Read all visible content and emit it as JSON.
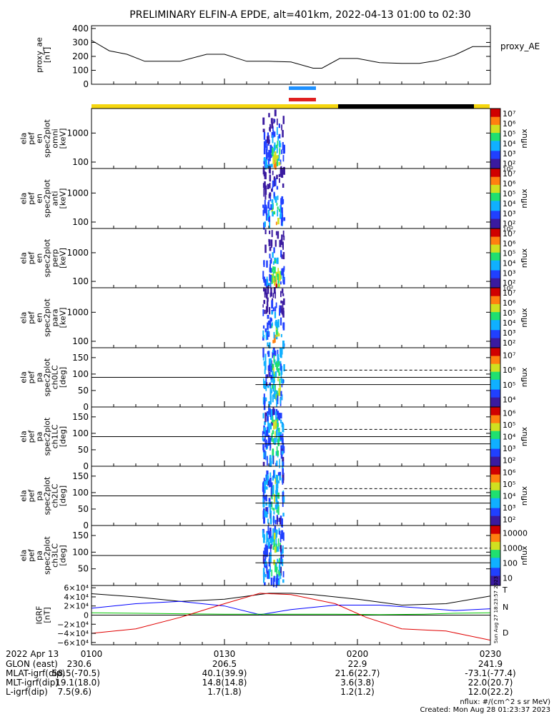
{
  "header": {
    "title": "PRELIMINARY ELFIN-A EPDE, alt=401km, 2022-04-13 01:00 to 02:30"
  },
  "colors": {
    "sunlight": "#f5d60f",
    "eclipse": "#000000",
    "sci_blue": "#1e90ff",
    "sci_red": "#e02020",
    "bx": "#000000",
    "by": "#0000ff",
    "bz": "#00c800",
    "bt": "#e00000"
  },
  "chart_data": [
    {
      "type": "line",
      "panel": "proxy_ae",
      "ylabel": "proxy_ae\n[nT]",
      "ylabel_lines": [
        "proxy_ae",
        "[nT]"
      ],
      "legend": "proxy_AE",
      "ylim": [
        0,
        420
      ],
      "yticks": [
        0,
        100,
        200,
        300,
        400
      ],
      "series": [
        {
          "name": "proxy_AE",
          "x": [
            0,
            4,
            8,
            12,
            17,
            20,
            26,
            30,
            35,
            40,
            45,
            50,
            52,
            56,
            60,
            65,
            70,
            74,
            78,
            82,
            86,
            90
          ],
          "values": [
            315,
            240,
            215,
            165,
            165,
            165,
            215,
            215,
            165,
            165,
            160,
            115,
            115,
            185,
            185,
            155,
            150,
            150,
            170,
            210,
            270,
            270
          ]
        }
      ]
    },
    {
      "type": "heatmap",
      "panel": "omni",
      "ylabel_lines": [
        "ela",
        "pef",
        "en",
        "spec2plot",
        "omni",
        "[keV]"
      ],
      "ylim": [
        60,
        7000
      ],
      "yscale": "log",
      "yticks": [
        100,
        1000
      ],
      "colorbar_label": "nflux",
      "colorbar_ticks": [
        "10²",
        "10³",
        "10⁴",
        "10⁵",
        "10⁶",
        "10⁷"
      ],
      "colorbar_extra_ticks": [
        "10²"
      ]
    },
    {
      "type": "heatmap",
      "panel": "anti",
      "ylabel_lines": [
        "ela",
        "pef",
        "en",
        "spec2plot",
        "anti",
        "[keV]"
      ],
      "ylim": [
        60,
        7000
      ],
      "yscale": "log",
      "yticks": [
        100,
        1000
      ],
      "colorbar_label": "nflux",
      "colorbar_ticks": [
        "10²",
        "10³",
        "10⁴",
        "10⁵",
        "10⁶",
        "10⁷"
      ],
      "colorbar_extra_ticks": [
        "10²"
      ]
    },
    {
      "type": "heatmap",
      "panel": "perp",
      "ylabel_lines": [
        "ela",
        "pef",
        "en",
        "spec2plot",
        "perp",
        "[keV]"
      ],
      "ylim": [
        60,
        7000
      ],
      "yscale": "log",
      "yticks": [
        100,
        1000
      ],
      "colorbar_label": "nflux",
      "colorbar_ticks": [
        "10²",
        "10³",
        "10⁴",
        "10⁵",
        "10⁶",
        "10⁷"
      ],
      "colorbar_extra_ticks": [
        "10²"
      ]
    },
    {
      "type": "heatmap",
      "panel": "para",
      "ylabel_lines": [
        "ela",
        "pef",
        "en",
        "spec2plot",
        "para",
        "[keV]"
      ],
      "ylim": [
        60,
        7000
      ],
      "yscale": "log",
      "yticks": [
        100,
        1000
      ],
      "colorbar_label": "nflux",
      "colorbar_ticks": [
        "10²",
        "10³",
        "10⁴",
        "10⁵",
        "10⁶",
        "10⁷"
      ],
      "colorbar_extra_ticks": []
    },
    {
      "type": "heatmap",
      "panel": "ch0LC",
      "ylabel_lines": [
        "ela",
        "pef",
        "pa",
        "spec2plot",
        "ch0LC",
        "[deg]"
      ],
      "ylim": [
        0,
        180
      ],
      "yticks": [
        0,
        50,
        100,
        150
      ],
      "colorbar_label": "nflux",
      "colorbar_ticks": [
        "10⁴",
        "10⁵",
        "10⁶",
        "10⁷"
      ],
      "colorbar_extra_ticks": []
    },
    {
      "type": "heatmap",
      "panel": "ch1LC",
      "ylabel_lines": [
        "ela",
        "pef",
        "pa",
        "spec2plot",
        "ch1LC",
        "[deg]"
      ],
      "ylim": [
        0,
        180
      ],
      "yticks": [
        0,
        50,
        100,
        150
      ],
      "colorbar_label": "nflux",
      "colorbar_ticks": [
        "10²",
        "10³",
        "10⁴",
        "10⁵",
        "10⁶"
      ],
      "colorbar_extra_ticks": []
    },
    {
      "type": "heatmap",
      "panel": "ch2LC",
      "ylabel_lines": [
        "ela",
        "pef",
        "pa",
        "spec2plot",
        "ch2LC",
        "[deg]"
      ],
      "ylim": [
        0,
        180
      ],
      "yticks": [
        0,
        50,
        100,
        150
      ],
      "colorbar_label": "nflux",
      "colorbar_ticks": [
        "10²",
        "10³",
        "10⁴",
        "10⁵",
        "10⁶"
      ],
      "colorbar_extra_ticks": []
    },
    {
      "type": "heatmap",
      "panel": "ch3LC",
      "ylabel_lines": [
        "ela",
        "pef",
        "pa",
        "spec2plot",
        "ch3LC",
        "[deg]"
      ],
      "ylim": [
        0,
        180
      ],
      "yticks": [
        50,
        100,
        150
      ],
      "colorbar_label": "nflux",
      "colorbar_ticks": [
        "10",
        "100",
        "1000",
        "10000"
      ],
      "colorbar_extra_ticks": []
    },
    {
      "type": "line",
      "panel": "igrf",
      "ylabel_lines": [
        "IGRF",
        "[nT]"
      ],
      "ylim": [
        -65000,
        65000
      ],
      "yticks": [
        "−6×10⁴",
        "−4×10⁴",
        "−2×10⁴",
        "0",
        "2×10⁴",
        "4×10⁴",
        "6×10⁴"
      ],
      "ytick_values": [
        -60000,
        -40000,
        -20000,
        0,
        20000,
        40000,
        60000
      ],
      "legend": [
        "T",
        "N",
        "D"
      ],
      "side_label": "Sun Aug 27 18:23:57 2023",
      "series": [
        {
          "name": "T",
          "x": [
            0,
            10,
            20,
            30,
            40,
            45,
            50,
            60,
            70,
            80,
            90
          ],
          "values": [
            47000,
            40000,
            30000,
            35000,
            48000,
            48000,
            45000,
            35000,
            22000,
            25000,
            42000
          ]
        },
        {
          "name": "N",
          "x": [
            0,
            10,
            20,
            30,
            38,
            45,
            55,
            65,
            75,
            82,
            90
          ],
          "values": [
            15000,
            25000,
            30000,
            20000,
            1000,
            12000,
            22000,
            22000,
            15000,
            10000,
            14000
          ]
        },
        {
          "name": "D",
          "x": [
            0,
            10,
            20,
            30,
            38,
            45,
            55,
            65,
            75,
            82,
            90
          ],
          "values": [
            5000,
            4000,
            3000,
            2000,
            2000,
            2000,
            2000,
            1000,
            2000,
            4000,
            5000
          ]
        },
        {
          "name": "Bt",
          "x": [
            0,
            10,
            20,
            30,
            38,
            45,
            55,
            62,
            70,
            80,
            90
          ],
          "values": [
            -40000,
            -30000,
            -5000,
            25000,
            48000,
            45000,
            25000,
            -5000,
            -30000,
            -35000,
            -55000
          ]
        }
      ]
    }
  ],
  "ephemeris": {
    "rows": [
      {
        "label": "2022 Apr 13",
        "values": [
          "0100",
          "0130",
          "0200",
          "0230"
        ]
      },
      {
        "label": "GLON (east)",
        "values": [
          "230.6",
          "206.5",
          "22.9",
          "241.9"
        ]
      },
      {
        "label": "MLAT-igrf(dip)",
        "values": [
          "58.5(-70.5)",
          "40.1(39.9)",
          "21.6(22.7)",
          "-73.1(-77.4)"
        ]
      },
      {
        "label": "MLT-igrf(dip)",
        "values": [
          "19.1(18.0)",
          "14.8(14.8)",
          "3.6(3.8)",
          "22.0(20.7)"
        ]
      },
      {
        "label": "L-igrf(dip)",
        "values": [
          "7.5(9.6)",
          "1.7(1.8)",
          "1.2(1.2)",
          "12.0(22.2)"
        ]
      }
    ]
  },
  "footer": {
    "units": "nflux: #/(cm^2 s sr MeV)",
    "created": "Created: Mon Aug 28 01:23:37 2023"
  }
}
